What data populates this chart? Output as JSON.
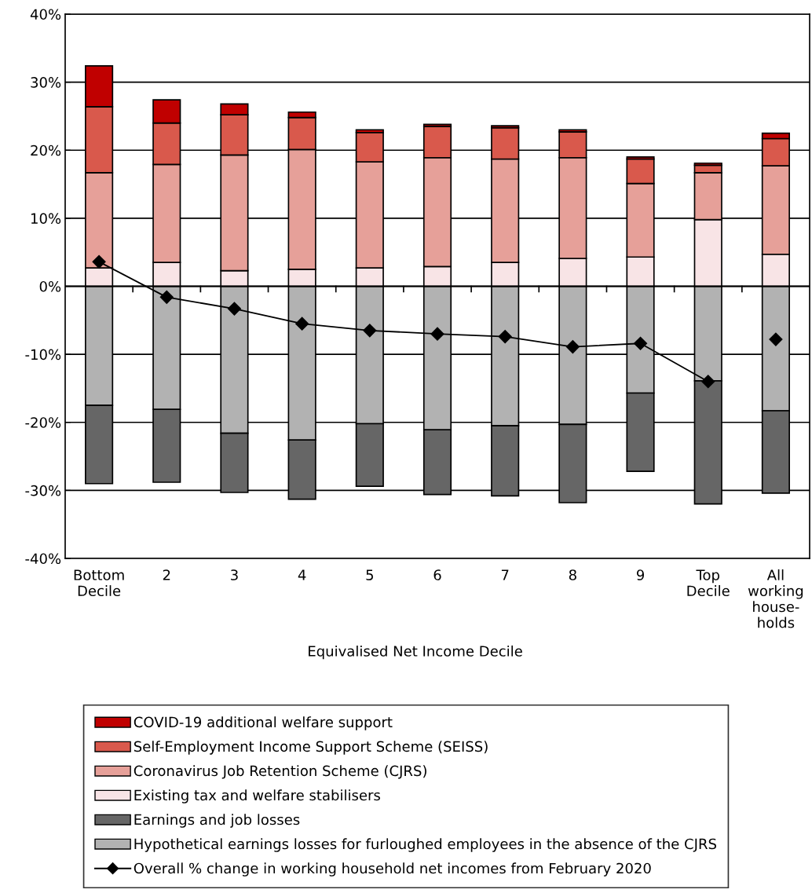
{
  "chart_data": {
    "type": "bar",
    "stacked": true,
    "xlabel": "Equivalised Net Income Decile",
    "categories": [
      "Bottom\nDecile",
      "2",
      "3",
      "4",
      "5",
      "6",
      "7",
      "8",
      "9",
      "Top\nDecile",
      "All\nworking\nhouse-\nholds"
    ],
    "series": [
      {
        "name": "Hypothetical earnings losses for furloughed employees in the absence of the CJRS",
        "color": "#b2b2b2",
        "values": [
          -17.5,
          -18.1,
          -21.6,
          -22.6,
          -20.2,
          -21.1,
          -20.5,
          -20.3,
          -15.7,
          -13.9,
          -18.3
        ]
      },
      {
        "name": "Earnings and job losses",
        "color": "#666666",
        "values": [
          -11.5,
          -10.7,
          -8.7,
          -8.7,
          -9.2,
          -9.5,
          -10.3,
          -11.5,
          -11.5,
          -18.1,
          -12.1
        ]
      },
      {
        "name": "Existing tax and welfare stabilisers",
        "color": "#f8e4e6",
        "values": [
          2.7,
          3.5,
          2.3,
          2.5,
          2.7,
          2.9,
          3.5,
          4.1,
          4.3,
          9.8,
          4.7
        ]
      },
      {
        "name": "Coronavirus Job Retention Scheme (CJRS)",
        "color": "#e6a099",
        "values": [
          14.0,
          14.4,
          17.0,
          17.6,
          15.6,
          16.0,
          15.2,
          14.8,
          10.8,
          6.9,
          13.0
        ]
      },
      {
        "name": "Self-Employment Income Support Scheme (SEISS)",
        "color": "#d9594c",
        "values": [
          9.7,
          6.1,
          5.9,
          4.7,
          4.3,
          4.6,
          4.6,
          3.8,
          3.6,
          1.1,
          4.0
        ]
      },
      {
        "name": "COVID-19 additional welfare support",
        "color": "#c00000",
        "values": [
          6.0,
          3.4,
          1.6,
          0.8,
          0.4,
          0.3,
          0.3,
          0.3,
          0.3,
          0.3,
          0.8
        ]
      },
      {
        "name": "Overall % change in working household net incomes from February 2020",
        "type": "line",
        "color": "#000000",
        "marker": "diamond",
        "values": [
          3.6,
          -1.6,
          -3.3,
          -5.5,
          -6.5,
          -7.0,
          -7.4,
          -8.9,
          -8.4,
          -14.0,
          null
        ]
      },
      {
        "type": "scatter",
        "color": "#000000",
        "marker": "diamond",
        "values": [
          null,
          null,
          null,
          null,
          null,
          null,
          null,
          null,
          null,
          null,
          -7.8
        ]
      }
    ],
    "ylim": [
      -40,
      40
    ],
    "yticks": [
      {
        "value": -40,
        "label": "-40%"
      },
      {
        "value": -30,
        "label": "-30%"
      },
      {
        "value": -20,
        "label": "-20%"
      },
      {
        "value": -10,
        "label": "-10%"
      },
      {
        "value": 0,
        "label": "0%"
      },
      {
        "value": 10,
        "label": "10%"
      },
      {
        "value": 20,
        "label": "20%"
      },
      {
        "value": 30,
        "label": "30%"
      },
      {
        "value": 40,
        "label": "40%"
      }
    ],
    "grid": "y",
    "legend": "bottom"
  }
}
